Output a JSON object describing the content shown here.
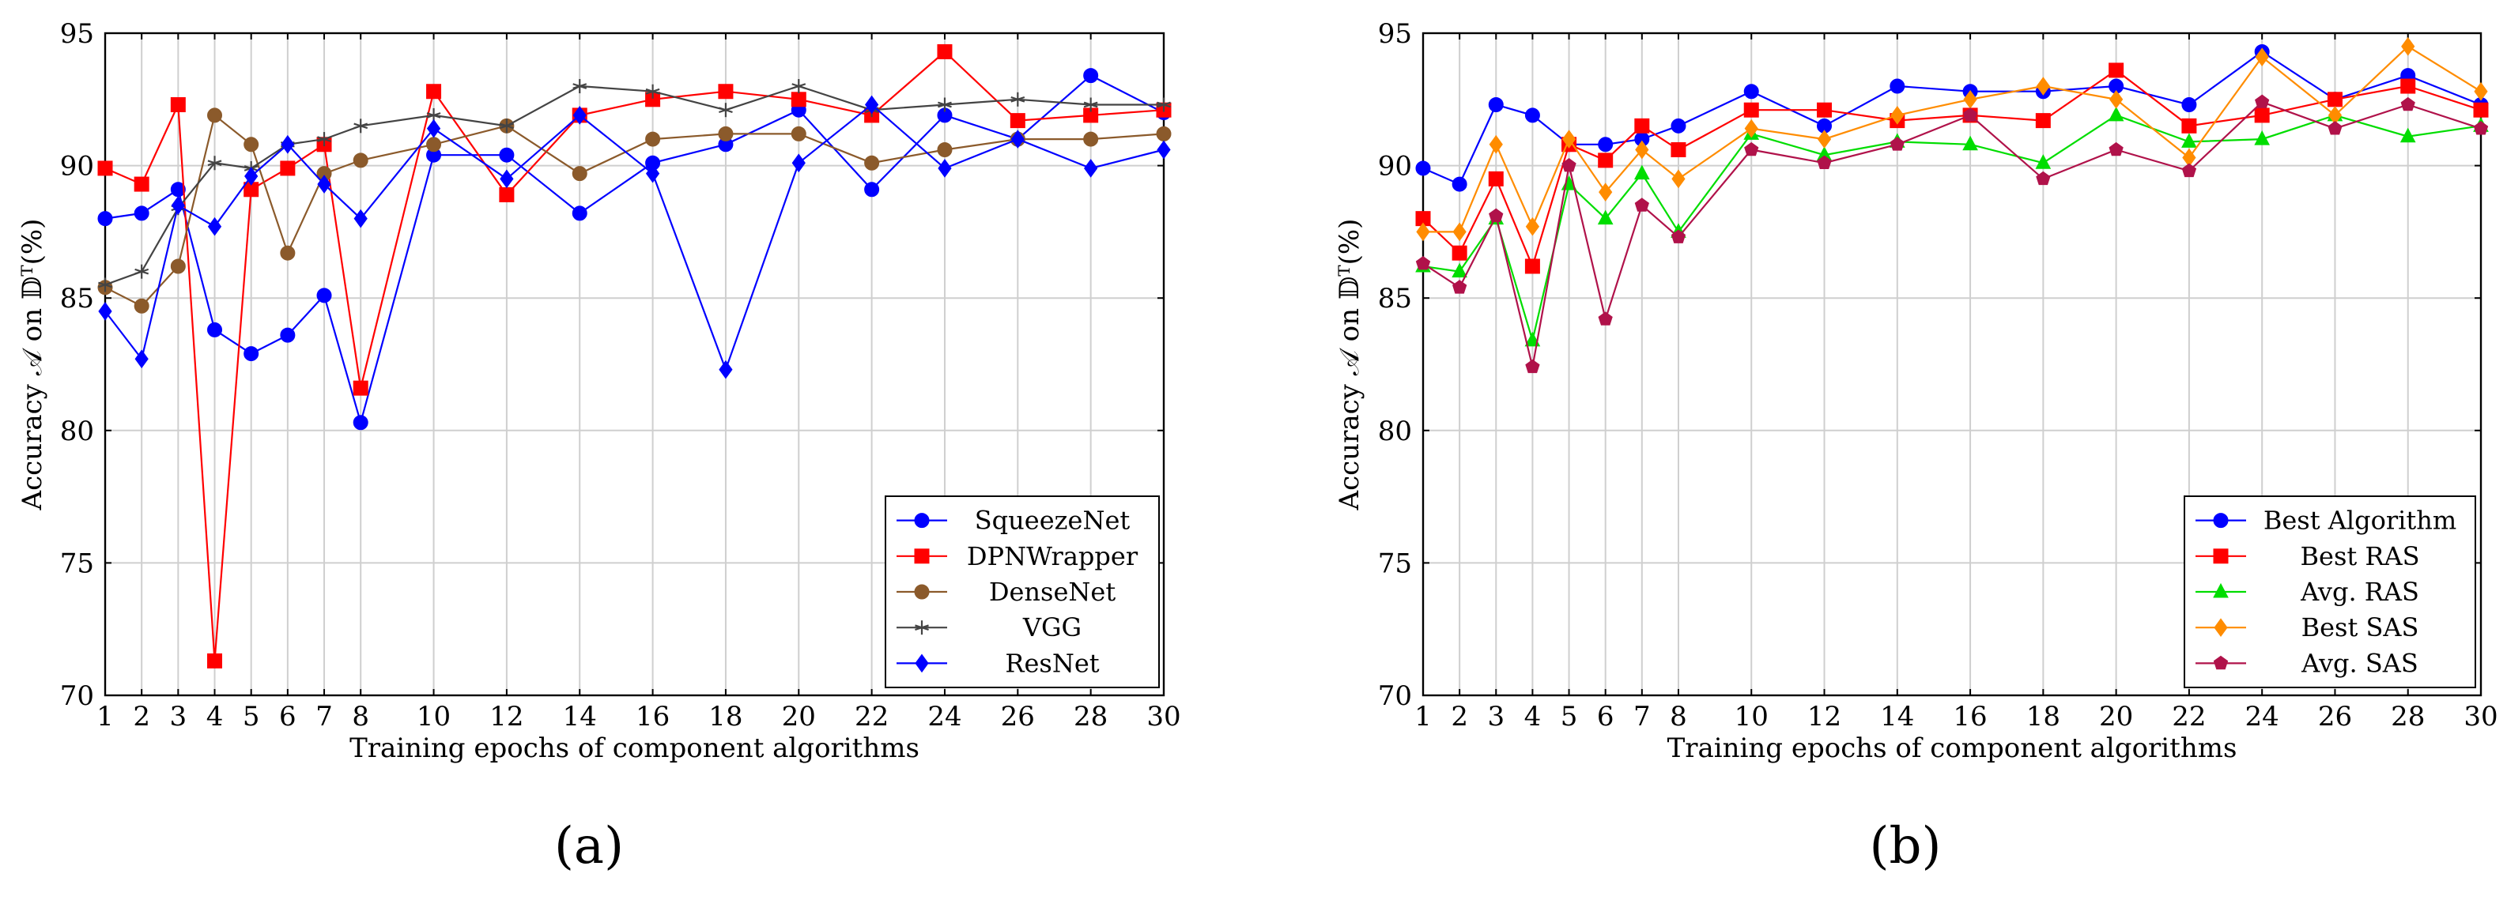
{
  "chart_data": [
    {
      "type": "line",
      "panel_label": "(a)",
      "xlabel": "Training epochs of component algorithms",
      "ylabel": "Accuracy 𝒜 on 𝔻ᵀ(%)",
      "x": [
        1,
        2,
        3,
        4,
        5,
        6,
        7,
        8,
        10,
        12,
        14,
        16,
        18,
        20,
        22,
        24,
        26,
        28,
        30
      ],
      "x_ticks": [
        "1",
        "2",
        "3",
        "4",
        "5",
        "6",
        "7",
        "8",
        "10",
        "12",
        "14",
        "16",
        "18",
        "20",
        "22",
        "24",
        "26",
        "28",
        "30"
      ],
      "ylim": [
        70,
        95
      ],
      "y_ticks": [
        "70",
        "75",
        "80",
        "85",
        "90",
        "95"
      ],
      "legend_position": "bottom-right",
      "series": [
        {
          "name": "SqueezeNet",
          "color": "#0000ff",
          "marker": "circle",
          "values": [
            88.0,
            88.2,
            89.1,
            83.8,
            82.9,
            83.6,
            85.1,
            80.3,
            90.4,
            90.4,
            88.2,
            90.1,
            90.8,
            92.1,
            89.1,
            91.9,
            91.0,
            93.4,
            92.0
          ]
        },
        {
          "name": "DPNWrapper",
          "color": "#ff0000",
          "marker": "square",
          "values": [
            89.9,
            89.3,
            92.3,
            71.3,
            89.1,
            89.9,
            90.8,
            81.6,
            92.8,
            88.9,
            91.9,
            92.5,
            92.8,
            92.5,
            91.9,
            94.3,
            91.7,
            91.9,
            92.1
          ]
        },
        {
          "name": "DenseNet",
          "color": "#8b5a2b",
          "marker": "circle",
          "values": [
            85.4,
            84.7,
            86.2,
            91.9,
            90.8,
            86.7,
            89.7,
            90.2,
            90.8,
            91.5,
            89.7,
            91.0,
            91.2,
            91.2,
            90.1,
            90.6,
            91.0,
            91.0,
            91.2
          ]
        },
        {
          "name": "VGG",
          "color": "#444444",
          "marker": "star",
          "values": [
            85.5,
            86.0,
            88.4,
            90.1,
            89.9,
            90.8,
            91.0,
            91.5,
            91.9,
            91.5,
            93.0,
            92.8,
            92.1,
            93.0,
            92.1,
            92.3,
            92.5,
            92.3,
            92.3
          ]
        },
        {
          "name": "ResNet",
          "color": "#0000ff",
          "marker": "diamond",
          "values": [
            84.5,
            82.7,
            88.5,
            87.7,
            89.6,
            90.8,
            89.3,
            88.0,
            91.4,
            89.5,
            91.9,
            89.7,
            82.3,
            90.1,
            92.3,
            89.9,
            91.0,
            89.9,
            90.6
          ]
        }
      ]
    },
    {
      "type": "line",
      "panel_label": "(b)",
      "xlabel": "Training epochs of component algorithms",
      "ylabel": "Accuracy 𝒜 on 𝔻ᵀ(%)",
      "x": [
        1,
        2,
        3,
        4,
        5,
        6,
        7,
        8,
        10,
        12,
        14,
        16,
        18,
        20,
        22,
        24,
        26,
        28,
        30
      ],
      "x_ticks": [
        "1",
        "2",
        "3",
        "4",
        "5",
        "6",
        "7",
        "8",
        "10",
        "12",
        "14",
        "16",
        "18",
        "20",
        "22",
        "24",
        "26",
        "28",
        "30"
      ],
      "ylim": [
        70,
        95
      ],
      "y_ticks": [
        "70",
        "75",
        "80",
        "85",
        "90",
        "95"
      ],
      "legend_position": "bottom-right",
      "series": [
        {
          "name": "Best Algorithm",
          "color": "#0000ff",
          "marker": "circle",
          "values": [
            89.9,
            89.3,
            92.3,
            91.9,
            90.8,
            90.8,
            91.0,
            91.5,
            92.8,
            91.5,
            93.0,
            92.8,
            92.8,
            93.0,
            92.3,
            94.3,
            92.5,
            93.4,
            92.3
          ]
        },
        {
          "name": "Best RAS",
          "color": "#ff0000",
          "marker": "square",
          "values": [
            88.0,
            86.7,
            89.5,
            86.2,
            90.8,
            90.2,
            91.5,
            90.6,
            92.1,
            92.1,
            91.7,
            91.9,
            91.7,
            93.6,
            91.5,
            91.9,
            92.5,
            93.0,
            92.1
          ]
        },
        {
          "name": "Avg. RAS",
          "color": "#00dd00",
          "marker": "triangle",
          "values": [
            86.2,
            86.0,
            88.0,
            83.4,
            89.3,
            88.0,
            89.7,
            87.5,
            91.2,
            90.4,
            90.9,
            90.8,
            90.1,
            91.9,
            90.9,
            91.0,
            91.9,
            91.1,
            91.5
          ]
        },
        {
          "name": "Best SAS",
          "color": "#ff8c00",
          "marker": "diamond",
          "values": [
            87.5,
            87.5,
            90.8,
            87.7,
            91.0,
            89.0,
            90.6,
            89.5,
            91.4,
            91.0,
            91.9,
            92.5,
            93.0,
            92.5,
            90.3,
            94.1,
            91.9,
            94.5,
            92.8
          ]
        },
        {
          "name": "Avg. SAS",
          "color": "#b0124a",
          "marker": "pentagon",
          "values": [
            86.3,
            85.4,
            88.1,
            82.4,
            90.0,
            84.2,
            88.5,
            87.3,
            90.6,
            90.1,
            90.8,
            91.9,
            89.5,
            90.6,
            89.8,
            92.4,
            91.4,
            92.3,
            91.4
          ]
        }
      ]
    }
  ]
}
